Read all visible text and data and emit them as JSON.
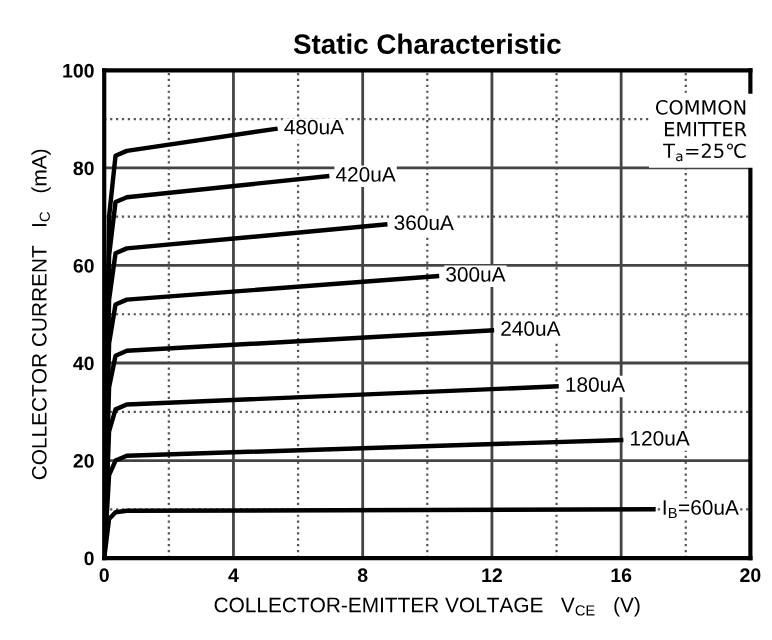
{
  "chart_data": {
    "type": "line",
    "title": "Static Characteristic",
    "xlabel": "COLLECTOR-EMITTER VOLTAGE   V$_{CE}$   (V)",
    "ylabel": "COLLECTOR CURRENT   I$_{C}$   (mA)",
    "annotations": [
      "COMMON\nEMITTER\nT$_{a}$=25℃"
    ],
    "series": [
      {
        "name": "480uA",
        "color": "#000000",
        "x": [
          0,
          0.15,
          0.35,
          0.7,
          5.3
        ],
        "values": [
          0,
          70,
          82.5,
          83.5,
          88
        ]
      },
      {
        "name": "420uA",
        "color": "#000000",
        "x": [
          0,
          0.15,
          0.35,
          0.7,
          6.9
        ],
        "values": [
          0,
          62,
          73,
          74,
          78.3
        ]
      },
      {
        "name": "360uA",
        "color": "#000000",
        "x": [
          0,
          0.15,
          0.35,
          0.7,
          8.7
        ],
        "values": [
          0,
          53,
          62.5,
          63.5,
          68.4
        ]
      },
      {
        "name": "300uA",
        "color": "#000000",
        "x": [
          0,
          0.15,
          0.35,
          0.7,
          10.3
        ],
        "values": [
          0,
          44,
          52,
          53,
          57.8
        ]
      },
      {
        "name": "240uA",
        "color": "#000000",
        "x": [
          0,
          0.15,
          0.35,
          0.7,
          12
        ],
        "values": [
          0,
          35,
          41.5,
          42.5,
          46.7
        ]
      },
      {
        "name": "180uA",
        "color": "#000000",
        "x": [
          0,
          0.15,
          0.35,
          0.7,
          14
        ],
        "values": [
          0,
          26,
          30.5,
          31.5,
          35.2
        ]
      },
      {
        "name": "120uA",
        "color": "#000000",
        "x": [
          0,
          0.15,
          0.35,
          0.7,
          16
        ],
        "values": [
          0,
          17,
          20,
          21,
          24.2
        ]
      },
      {
        "name": "I$_{B}$=60uA",
        "color": "#000000",
        "x": [
          0,
          0.15,
          0.35,
          0.7,
          17
        ],
        "values": [
          0,
          8,
          9.4,
          9.7,
          10
        ]
      }
    ],
    "xlim": [
      0,
      20
    ],
    "ylim": [
      0,
      100
    ],
    "xticks": [
      0,
      {
        "value": 2,
        "label": null
      },
      4,
      {
        "value": 6,
        "label": null
      },
      8,
      {
        "value": 10,
        "label": null
      },
      12,
      {
        "value": 14,
        "label": null
      },
      16,
      {
        "value": 18,
        "label": null
      },
      20
    ],
    "yticks": [
      0,
      {
        "value": 10,
        "label": null
      },
      20,
      {
        "value": 30,
        "label": null
      },
      40,
      {
        "value": 50,
        "label": null
      },
      60,
      {
        "value": 70,
        "label": null
      },
      80,
      {
        "value": 90,
        "label": null
      },
      100
    ],
    "grid": true,
    "legend": false,
    "marker": "none",
    "line_style": "solid"
  }
}
